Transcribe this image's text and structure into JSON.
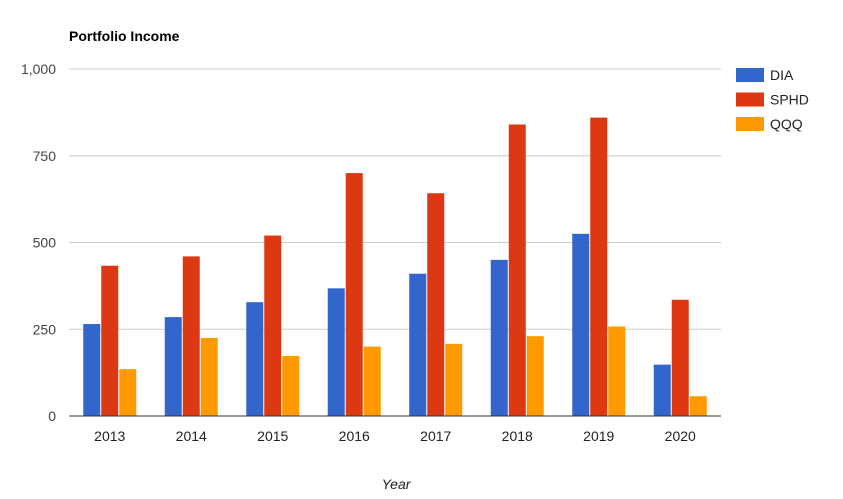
{
  "chart_data": {
    "type": "bar",
    "title": "Portfolio Income",
    "xlabel": "Year",
    "ylabel": "",
    "categories": [
      "2013",
      "2014",
      "2015",
      "2016",
      "2017",
      "2018",
      "2019",
      "2020"
    ],
    "series": [
      {
        "name": "DIA",
        "color": "#3366cc",
        "values": [
          265,
          285,
          328,
          368,
          410,
          450,
          525,
          148
        ]
      },
      {
        "name": "SPHD",
        "color": "#dc3912",
        "values": [
          433,
          460,
          520,
          700,
          642,
          840,
          860,
          335
        ]
      },
      {
        "name": "QQQ",
        "color": "#ff9900",
        "values": [
          135,
          225,
          173,
          200,
          208,
          230,
          258,
          57
        ]
      }
    ],
    "ylim": [
      0,
      1000
    ],
    "yticks": [
      0,
      250,
      500,
      750,
      1000
    ],
    "ytick_labels": [
      "0",
      "250",
      "500",
      "750",
      "1,000"
    ],
    "grid": true,
    "legend_position": "right"
  }
}
